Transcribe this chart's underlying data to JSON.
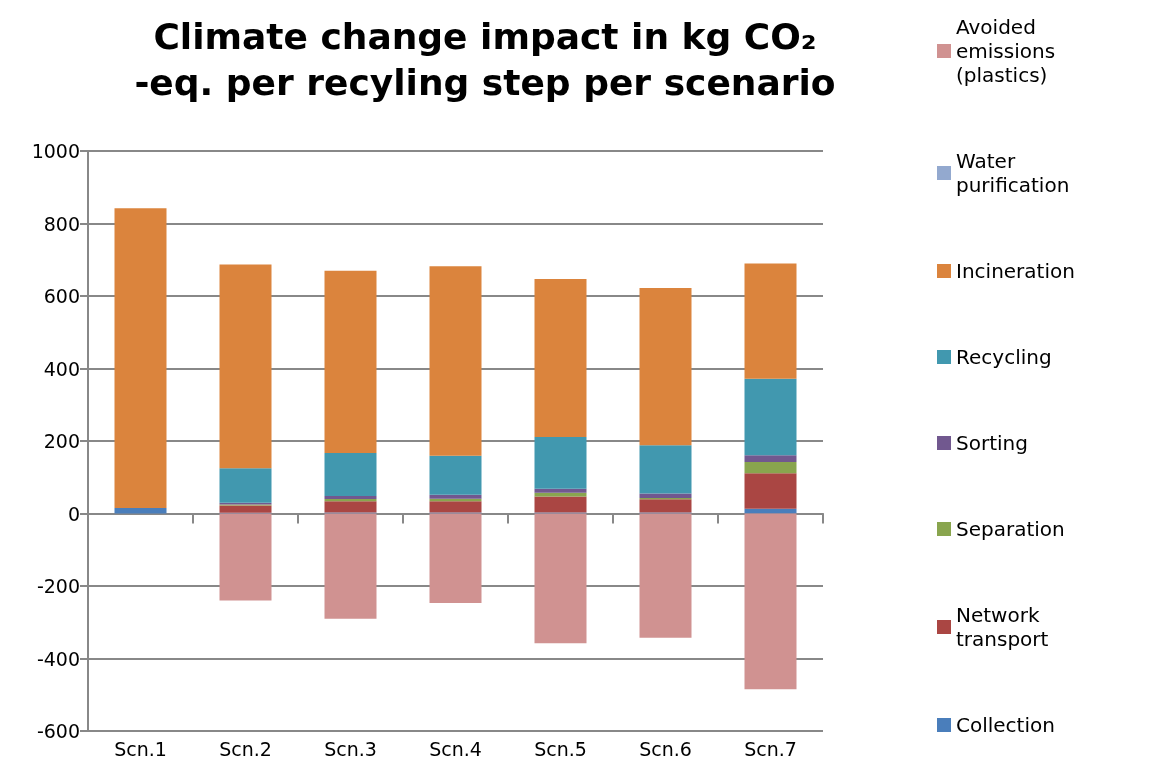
{
  "chart_data": {
    "type": "bar",
    "title": "Climate change impact in kg CO₂-eq. per recyling step per scenario",
    "categories": [
      "Scn.1",
      "Scn.2",
      "Scn.3",
      "Scn.4",
      "Scn.5",
      "Scn.6",
      "Scn.7"
    ],
    "stacked": true,
    "series": [
      {
        "name": "Collection",
        "color": "#4a7ebb",
        "values": [
          15,
          2,
          3,
          3,
          3,
          3,
          13
        ]
      },
      {
        "name": "Network transport",
        "color": "#aa4643",
        "values": [
          0,
          20,
          31,
          31,
          44,
          36,
          98
        ]
      },
      {
        "name": "Separation",
        "color": "#89a54e",
        "values": [
          0,
          3,
          6,
          7,
          10,
          4,
          31
        ]
      },
      {
        "name": "Sorting",
        "color": "#71588f",
        "values": [
          0,
          5,
          8,
          11,
          11,
          12,
          19
        ]
      },
      {
        "name": "Recycling",
        "color": "#4198af",
        "values": [
          0,
          95,
          119,
          107,
          143,
          133,
          211
        ]
      },
      {
        "name": "Incineration",
        "color": "#db843d",
        "values": [
          827,
          562,
          503,
          523,
          436,
          434,
          318
        ]
      },
      {
        "name": "Water purification",
        "color": "#93a9cf",
        "values": [
          0,
          0,
          0,
          0,
          0,
          0,
          0
        ]
      },
      {
        "name": "Avoided emissions (plastics)",
        "color": "#d09291",
        "values": [
          0,
          -240,
          -290,
          -247,
          -358,
          -343,
          -485
        ]
      }
    ],
    "ylim": [
      -600,
      1000
    ],
    "yticks": [
      -600,
      -400,
      -200,
      0,
      200,
      400,
      600,
      800,
      1000
    ],
    "grid": "y",
    "legend": "right"
  }
}
